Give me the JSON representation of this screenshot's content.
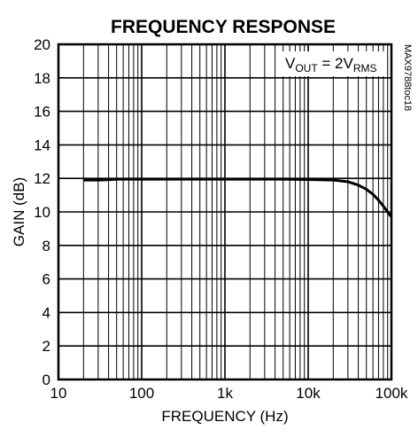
{
  "chart_data": {
    "type": "line",
    "title": "FREQUENCY RESPONSE",
    "xlabel": "FREQUENCY (Hz)",
    "ylabel": "GAIN (dB)",
    "x_scale": "log",
    "xlim": [
      10,
      100000
    ],
    "ylim": [
      0,
      20
    ],
    "x_ticks": [
      {
        "value": 10,
        "label": "10"
      },
      {
        "value": 100,
        "label": "100"
      },
      {
        "value": 1000,
        "label": "1k"
      },
      {
        "value": 10000,
        "label": "10k"
      },
      {
        "value": 100000,
        "label": "100k"
      }
    ],
    "y_ticks": [
      {
        "value": 0,
        "label": "0"
      },
      {
        "value": 2,
        "label": "2"
      },
      {
        "value": 4,
        "label": "4"
      },
      {
        "value": 6,
        "label": "6"
      },
      {
        "value": 8,
        "label": "8"
      },
      {
        "value": 10,
        "label": "10"
      },
      {
        "value": 12,
        "label": "12"
      },
      {
        "value": 14,
        "label": "14"
      },
      {
        "value": 16,
        "label": "16"
      },
      {
        "value": 18,
        "label": "18"
      },
      {
        "value": 20,
        "label": "20"
      }
    ],
    "grid": true,
    "annotation": {
      "main": "V",
      "sub1": "OUT",
      "mid": " = 2V",
      "sub2": "RMS"
    },
    "side_id": "MAX9788toc18",
    "series": [
      {
        "x": [
          20,
          30,
          40,
          50,
          100,
          200,
          500,
          1000,
          2000,
          5000,
          10000,
          20000,
          30000,
          40000,
          50000,
          60000,
          70000,
          80000,
          90000,
          100000
        ],
        "y": [
          11.9,
          11.9,
          11.92,
          11.95,
          11.95,
          11.95,
          11.95,
          11.95,
          11.95,
          11.95,
          11.93,
          11.9,
          11.8,
          11.6,
          11.35,
          11.05,
          10.7,
          10.35,
          10.0,
          9.7
        ]
      }
    ]
  }
}
